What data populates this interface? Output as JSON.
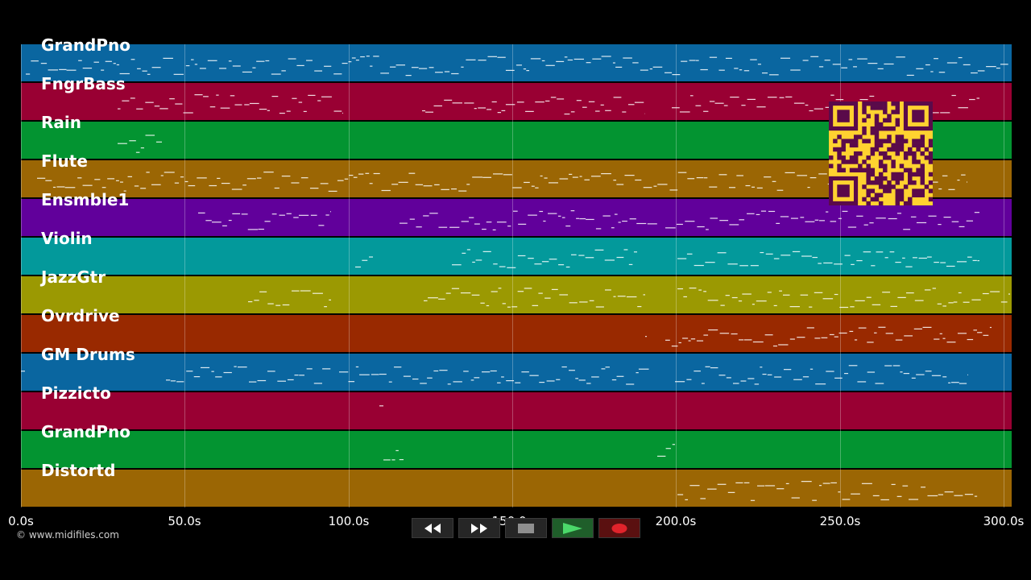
{
  "tracks": [
    {
      "name": "GrandPno",
      "color": "#0a66a0"
    },
    {
      "name": "FngrBass",
      "color": "#990033"
    },
    {
      "name": "Rain",
      "color": "#039431"
    },
    {
      "name": "Flute",
      "color": "#9b6604"
    },
    {
      "name": "Ensmble1",
      "color": "#61009b"
    },
    {
      "name": "Violin",
      "color": "#03999b"
    },
    {
      "name": "JazzGtr",
      "color": "#9b9902"
    },
    {
      "name": "Ovrdrive",
      "color": "#992900"
    },
    {
      "name": "GM Drums",
      "color": "#0a66a0"
    },
    {
      "name": "Pizzicto",
      "color": "#990033"
    },
    {
      "name": "GrandPno",
      "color": "#039431"
    },
    {
      "name": "Distortd",
      "color": "#9b6604"
    }
  ],
  "timeline": {
    "ticks": [
      "0.0s",
      "50.0s",
      "100.0s",
      "150.0s",
      "200.0s",
      "250.0s",
      "300.0s"
    ],
    "tick_seconds": [
      0,
      50,
      100,
      150,
      200,
      250,
      300
    ],
    "max_seconds": 302
  },
  "copyright": "© www.midifiles.com",
  "transport": [
    {
      "name": "rewind-button",
      "icon": "rewind-icon"
    },
    {
      "name": "fast-forward-button",
      "icon": "fast-forward-icon"
    },
    {
      "name": "stop-button",
      "icon": "stop-icon"
    },
    {
      "name": "play-button",
      "icon": "play-icon"
    },
    {
      "name": "record-button",
      "icon": "record-icon"
    }
  ],
  "qr_code": {
    "icon": "qr-code-icon",
    "color": "#ffd230",
    "module_color": "#5a0a4a"
  }
}
